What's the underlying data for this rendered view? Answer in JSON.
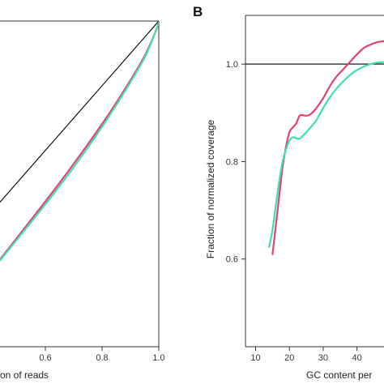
{
  "chart_data": [
    {
      "panel": "",
      "type": "line",
      "xlabel": "on of reads",
      "ylabel": "",
      "xlim": [
        0.44,
        1.0
      ],
      "ylim": [
        0.0,
        1.0
      ],
      "xticks": [
        {
          "value": 0.6,
          "label": "0.6"
        },
        {
          "value": 0.8,
          "label": "0.8"
        },
        {
          "value": 1.0,
          "label": "1.0"
        }
      ],
      "grid": false,
      "series": [
        {
          "color": "#000000",
          "x": [
            0.44,
            1.0
          ],
          "y": [
            0.444,
            1.0
          ]
        },
        {
          "color": "#e0446b",
          "x": [
            0.44,
            0.55,
            0.65,
            0.75,
            0.85,
            0.95,
            1.0
          ],
          "y": [
            0.268,
            0.39,
            0.503,
            0.622,
            0.749,
            0.893,
            0.992
          ]
        },
        {
          "color": "#3ee0ad",
          "x": [
            0.44,
            0.55,
            0.65,
            0.75,
            0.85,
            0.95,
            1.0
          ],
          "y": [
            0.265,
            0.383,
            0.493,
            0.612,
            0.742,
            0.888,
            0.996
          ]
        }
      ]
    },
    {
      "panel": "B",
      "type": "line",
      "xlabel": "GC content per",
      "ylabel": "Fraction of normalized coverage",
      "xlim": [
        7,
        48
      ],
      "ylim": [
        0.42,
        1.1
      ],
      "xticks": [
        {
          "value": 10,
          "label": "10"
        },
        {
          "value": 20,
          "label": "20"
        },
        {
          "value": 30,
          "label": "30"
        },
        {
          "value": 40,
          "label": "40"
        }
      ],
      "yticks": [
        {
          "value": 0.6,
          "label": "0.6"
        },
        {
          "value": 0.8,
          "label": "0.8"
        },
        {
          "value": 1.0,
          "label": "1.0"
        }
      ],
      "grid": false,
      "series": [
        {
          "color": "#000000",
          "x": [
            7,
            48
          ],
          "y": [
            1.0,
            1.0
          ]
        },
        {
          "color": "#e0446b",
          "x": [
            15,
            16,
            17,
            18,
            19,
            20,
            21,
            22,
            23,
            24,
            25,
            26,
            27,
            28,
            30,
            32,
            34,
            36,
            38,
            40,
            42,
            44,
            46,
            48
          ],
          "y": [
            0.61,
            0.668,
            0.73,
            0.79,
            0.83,
            0.86,
            0.87,
            0.878,
            0.894,
            0.895,
            0.894,
            0.896,
            0.902,
            0.91,
            0.93,
            0.955,
            0.975,
            0.99,
            1.005,
            1.02,
            1.033,
            1.04,
            1.045,
            1.047
          ]
        },
        {
          "color": "#3ee0ad",
          "x": [
            14,
            15,
            16,
            17,
            18,
            19,
            20,
            21,
            22,
            23,
            24,
            25,
            26,
            28,
            30,
            32,
            34,
            36,
            38,
            40,
            42,
            44,
            46,
            48
          ],
          "y": [
            0.625,
            0.66,
            0.71,
            0.76,
            0.8,
            0.825,
            0.843,
            0.85,
            0.848,
            0.847,
            0.853,
            0.86,
            0.868,
            0.885,
            0.91,
            0.932,
            0.95,
            0.965,
            0.978,
            0.988,
            0.995,
            1.0,
            1.003,
            1.004
          ]
        }
      ]
    }
  ]
}
